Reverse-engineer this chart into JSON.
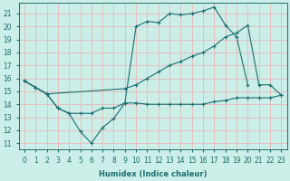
{
  "xlabel": "Humidex (Indice chaleur)",
  "bg_color": "#cceee8",
  "grid_color": "#e8b8b8",
  "line_color": "#1a6e6e",
  "xlim": [
    -0.5,
    23.5
  ],
  "ylim": [
    10.5,
    21.8
  ],
  "yticks": [
    11,
    12,
    13,
    14,
    15,
    16,
    17,
    18,
    19,
    20,
    21
  ],
  "xticks": [
    0,
    1,
    2,
    3,
    4,
    5,
    6,
    7,
    8,
    9,
    10,
    11,
    12,
    13,
    14,
    15,
    16,
    17,
    18,
    19,
    20,
    21,
    22,
    23
  ],
  "line1_x": [
    0,
    1,
    2,
    3,
    4,
    5,
    6,
    7,
    8,
    9,
    10,
    11,
    12,
    13,
    14,
    15,
    16,
    17,
    18,
    19,
    20
  ],
  "line1_y": [
    15.8,
    15.3,
    14.8,
    13.7,
    13.3,
    11.9,
    11.0,
    12.2,
    12.9,
    14.1,
    20.0,
    20.4,
    20.3,
    21.0,
    20.9,
    21.0,
    21.2,
    21.5,
    20.1,
    19.2,
    15.5
  ],
  "line2_x": [
    0,
    1,
    2,
    3,
    4,
    5,
    6,
    7,
    8,
    9,
    10,
    11,
    12,
    13,
    14,
    15,
    16,
    17,
    18,
    19,
    20,
    21,
    22,
    23
  ],
  "line2_y": [
    15.8,
    15.3,
    14.8,
    13.7,
    13.3,
    13.3,
    13.3,
    13.7,
    13.7,
    14.1,
    14.1,
    14.0,
    14.0,
    14.0,
    14.0,
    14.0,
    14.0,
    14.2,
    14.3,
    14.5,
    14.5,
    14.5,
    14.5,
    14.7
  ],
  "line3_x": [
    0,
    1,
    2,
    9,
    10,
    11,
    12,
    13,
    14,
    15,
    16,
    17,
    18,
    19,
    20,
    21,
    22,
    23
  ],
  "line3_y": [
    15.8,
    15.3,
    14.8,
    15.2,
    15.5,
    16.0,
    16.5,
    17.0,
    17.3,
    17.7,
    18.0,
    18.5,
    19.2,
    19.5,
    20.1,
    15.5,
    15.5,
    14.7
  ]
}
